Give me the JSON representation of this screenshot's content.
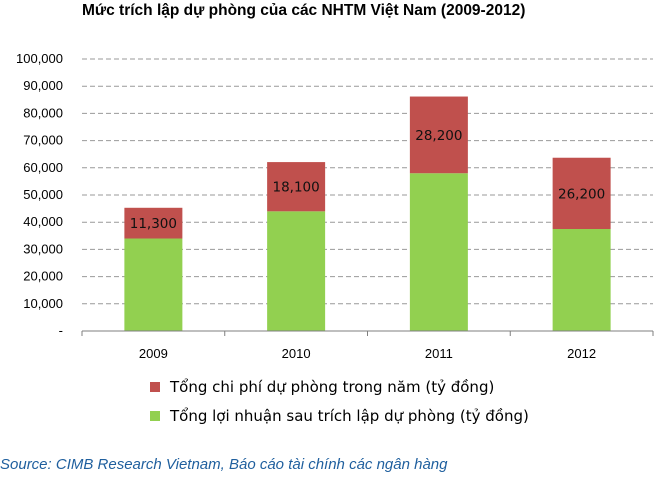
{
  "title": "Mức trích lập dự phòng của các NHTM Việt Nam (2009-2012)",
  "source": "Source: CIMB Research Vietnam, Báo cáo tài chính các ngân hàng",
  "colors": {
    "provision": "#c0504d",
    "profit": "#92d050",
    "grid": "#999999",
    "source_text": "#1f5f9e"
  },
  "chart_data": {
    "type": "bar",
    "stacked": true,
    "categories": [
      "2009",
      "2010",
      "2011",
      "2012"
    ],
    "series": [
      {
        "name": "Tổng lợi nhuận sau trích lập dự phòng (tỷ đồng)",
        "values": [
          34000,
          44000,
          58000,
          37500
        ]
      },
      {
        "name": "Tổng chi phí dự phòng trong năm (tỷ đồng)",
        "values": [
          11300,
          18100,
          28200,
          26200
        ],
        "data_labels": [
          "11,300",
          "18,100",
          "28,200",
          "26,200"
        ]
      }
    ],
    "ylim": [
      0,
      100000
    ],
    "yticks": [
      0,
      10000,
      20000,
      30000,
      40000,
      50000,
      60000,
      70000,
      80000,
      90000,
      100000
    ],
    "ytick_labels": [
      "-",
      "10,000",
      "20,000",
      "30,000",
      "40,000",
      "50,000",
      "60,000",
      "70,000",
      "80,000",
      "90,000",
      "100,000"
    ],
    "grid": true,
    "legend_position": "bottom"
  }
}
